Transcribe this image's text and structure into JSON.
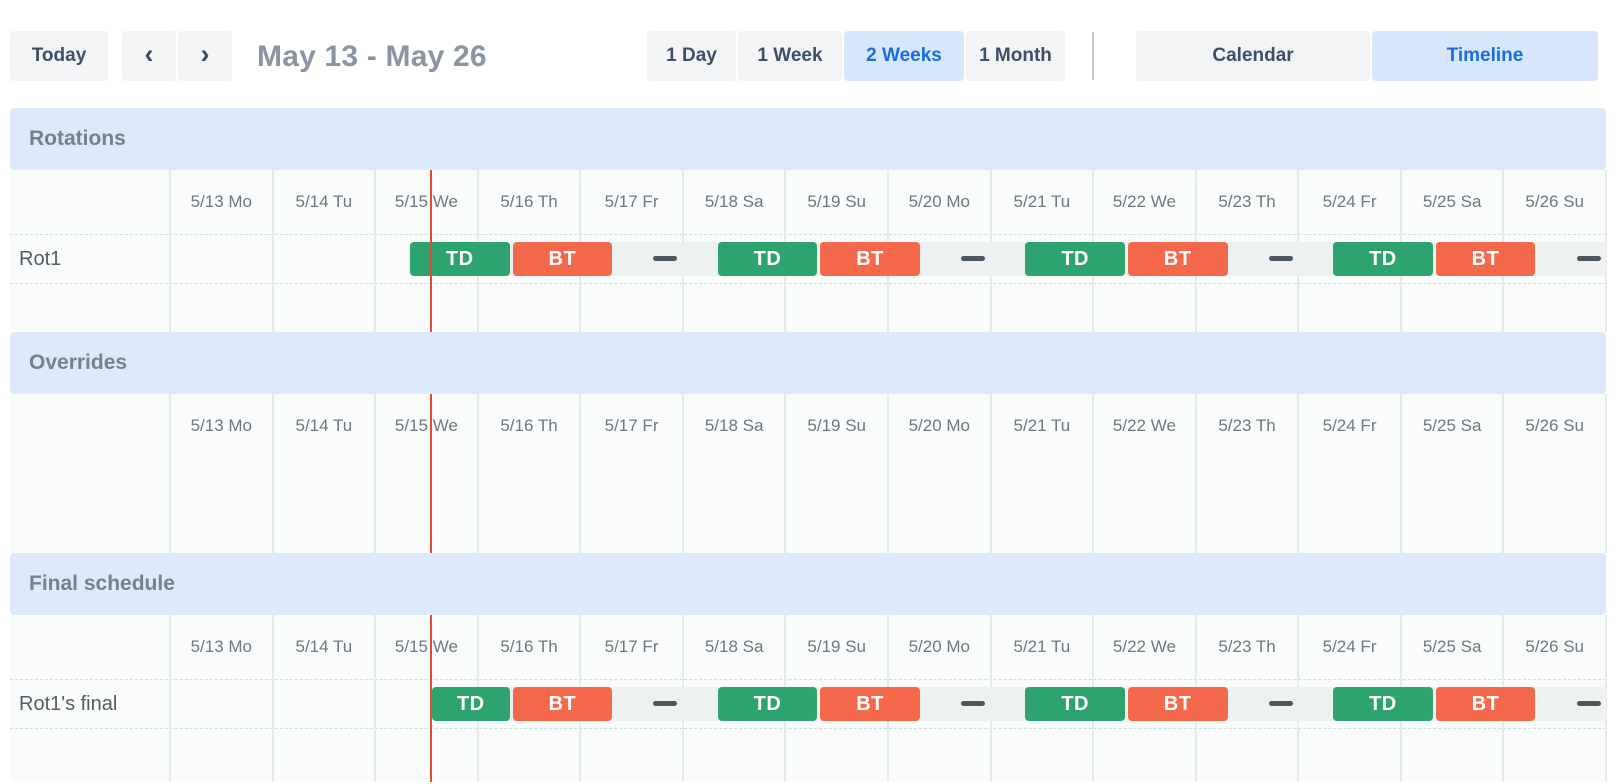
{
  "toolbar": {
    "today_label": "Today",
    "chevron_left_icon": "‹",
    "chevron_right_icon": "›",
    "title": "May 13 - May 26",
    "range_options": [
      {
        "label": "1 Day",
        "selected": false
      },
      {
        "label": "1 Week",
        "selected": false
      },
      {
        "label": "2 Weeks",
        "selected": true
      },
      {
        "label": "1 Month",
        "selected": false
      }
    ],
    "view_options": [
      {
        "label": "Calendar",
        "selected": false
      },
      {
        "label": "Timeline",
        "selected": true
      }
    ]
  },
  "colors": {
    "accent_blue_bg": "#d8e6fc",
    "accent_blue_text": "#1a6de0",
    "section_band_bg": "#dde9fc",
    "shift_td": "#2da36d",
    "shift_bt": "#f4694c",
    "now_line": "#e04b33",
    "gap_dash": "#4d5760"
  },
  "chart_data": {
    "type": "table",
    "days": [
      "5/13 Mo",
      "5/14 Tu",
      "5/15 We",
      "5/16 Th",
      "5/17 Fr",
      "5/18 Sa",
      "5/19 Su",
      "5/20 Mo",
      "5/21 Tu",
      "5/22 We",
      "5/23 Th",
      "5/24 Fr",
      "5/25 Sa",
      "5/26 Su"
    ],
    "now_marker": {
      "day_position": 2.545
    },
    "sections": [
      {
        "id": "rotations",
        "title": "Rotations",
        "rows": [
          {
            "label": "Rot1",
            "band_start": 2.33,
            "bars": [
              {
                "label": "TD",
                "color_key": "shift_td",
                "start": 2.33,
                "end": 3.33
              },
              {
                "label": "BT",
                "color_key": "shift_bt",
                "start": 3.33,
                "end": 4.33
              },
              {
                "label": "TD",
                "color_key": "shift_td",
                "start": 5.33,
                "end": 6.33
              },
              {
                "label": "BT",
                "color_key": "shift_bt",
                "start": 6.33,
                "end": 7.33
              },
              {
                "label": "TD",
                "color_key": "shift_td",
                "start": 8.33,
                "end": 9.33
              },
              {
                "label": "BT",
                "color_key": "shift_bt",
                "start": 9.33,
                "end": 10.33
              },
              {
                "label": "TD",
                "color_key": "shift_td",
                "start": 11.33,
                "end": 12.33
              },
              {
                "label": "BT",
                "color_key": "shift_bt",
                "start": 12.33,
                "end": 13.33
              }
            ],
            "gap_dashes": [
              4.83,
              7.83,
              10.83,
              13.83
            ]
          }
        ]
      },
      {
        "id": "overrides",
        "title": "Overrides",
        "rows": []
      },
      {
        "id": "final",
        "title": "Final schedule",
        "rows": [
          {
            "label": "Rot1's final",
            "band_start": 2.545,
            "bars": [
              {
                "label": "TD",
                "color_key": "shift_td",
                "start": 2.545,
                "end": 3.33
              },
              {
                "label": "BT",
                "color_key": "shift_bt",
                "start": 3.33,
                "end": 4.33
              },
              {
                "label": "TD",
                "color_key": "shift_td",
                "start": 5.33,
                "end": 6.33
              },
              {
                "label": "BT",
                "color_key": "shift_bt",
                "start": 6.33,
                "end": 7.33
              },
              {
                "label": "TD",
                "color_key": "shift_td",
                "start": 8.33,
                "end": 9.33
              },
              {
                "label": "BT",
                "color_key": "shift_bt",
                "start": 9.33,
                "end": 10.33
              },
              {
                "label": "TD",
                "color_key": "shift_td",
                "start": 11.33,
                "end": 12.33
              },
              {
                "label": "BT",
                "color_key": "shift_bt",
                "start": 12.33,
                "end": 13.33
              }
            ],
            "gap_dashes": [
              4.83,
              7.83,
              10.83,
              13.83
            ]
          }
        ]
      }
    ]
  }
}
